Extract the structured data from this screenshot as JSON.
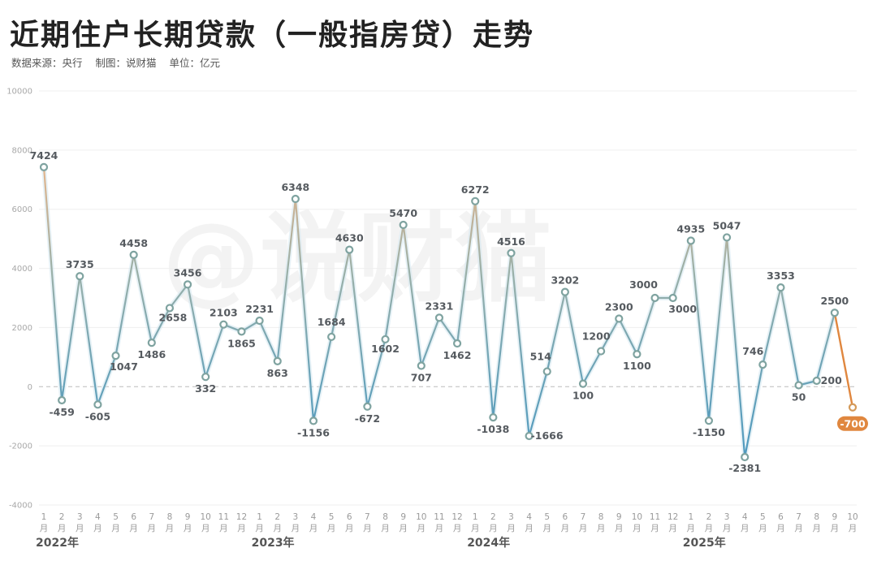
{
  "header": {
    "title": "近期住户长期贷款（一般指房贷）走势",
    "source": "数据来源：央行",
    "maker": "制图：说财猫",
    "unit": "单位：亿元"
  },
  "watermark": "@说财猫",
  "colors": {
    "line_blue": "#5b9bb5",
    "line_grey": "#8aa8a8",
    "line_orange_peak": "#e8b58a",
    "highlight": "#e0873f",
    "marker_stroke": "#7fa3a0",
    "grid": "#efefef",
    "zero_line": "#bbbbbb"
  },
  "chart_data": {
    "type": "line",
    "title": "近期住户长期贷款（一般指房贷）走势",
    "subtitle": "数据来源：央行 制图：说财猫 单位：亿元",
    "xlabel": "",
    "ylabel": "亿元",
    "ylim": [
      -4000,
      10000
    ],
    "yticks": [
      10000,
      8000,
      6000,
      4000,
      2000,
      0,
      -2000,
      -4000
    ],
    "grid": true,
    "legend": null,
    "years": [
      {
        "label": "2022年",
        "start_index": 0
      },
      {
        "label": "2023年",
        "start_index": 12
      },
      {
        "label": "2024年",
        "start_index": 24
      },
      {
        "label": "2025年",
        "start_index": 36
      }
    ],
    "categories": [
      "2022-1",
      "2022-2",
      "2022-3",
      "2022-4",
      "2022-5",
      "2022-6",
      "2022-7",
      "2022-8",
      "2022-9",
      "2022-10",
      "2022-11",
      "2022-12",
      "2023-1",
      "2023-2",
      "2023-3",
      "2023-4",
      "2023-5",
      "2023-6",
      "2023-7",
      "2023-8",
      "2023-9",
      "2023-10",
      "2023-11",
      "2023-12",
      "2024-1",
      "2024-2",
      "2024-3",
      "2024-4",
      "2024-5",
      "2024-6",
      "2024-7",
      "2024-8",
      "2024-9",
      "2024-10",
      "2024-11",
      "2024-12",
      "2025-1",
      "2025-2",
      "2025-3",
      "2025-4",
      "2025-5",
      "2025-6",
      "2025-7",
      "2025-8",
      "2025-9",
      "2025-10"
    ],
    "month_labels": [
      "1",
      "2",
      "3",
      "4",
      "5",
      "6",
      "7",
      "8",
      "9",
      "10",
      "11",
      "12",
      "1",
      "2",
      "3",
      "4",
      "5",
      "6",
      "7",
      "8",
      "9",
      "10",
      "11",
      "12",
      "1",
      "2",
      "3",
      "4",
      "5",
      "6",
      "7",
      "8",
      "9",
      "10",
      "11",
      "12",
      "1",
      "2",
      "3",
      "4",
      "5",
      "6",
      "7",
      "8",
      "9",
      "10"
    ],
    "month_suffix": "月",
    "series": [
      {
        "name": "住户长期贷款",
        "values": [
          7424,
          -459,
          3735,
          -605,
          1047,
          4458,
          1486,
          2658,
          3456,
          332,
          2103,
          1865,
          2231,
          863,
          6348,
          -1156,
          1684,
          4630,
          -672,
          1602,
          5470,
          707,
          2331,
          1462,
          6272,
          -1038,
          4516,
          -1666,
          514,
          3202,
          100,
          1200,
          2300,
          1100,
          3000,
          3000,
          4935,
          -1150,
          5047,
          -2381,
          746,
          3353,
          50,
          200,
          2500,
          -700
        ],
        "highlight_last": {
          "label": "-700",
          "value": -700
        }
      }
    ]
  }
}
